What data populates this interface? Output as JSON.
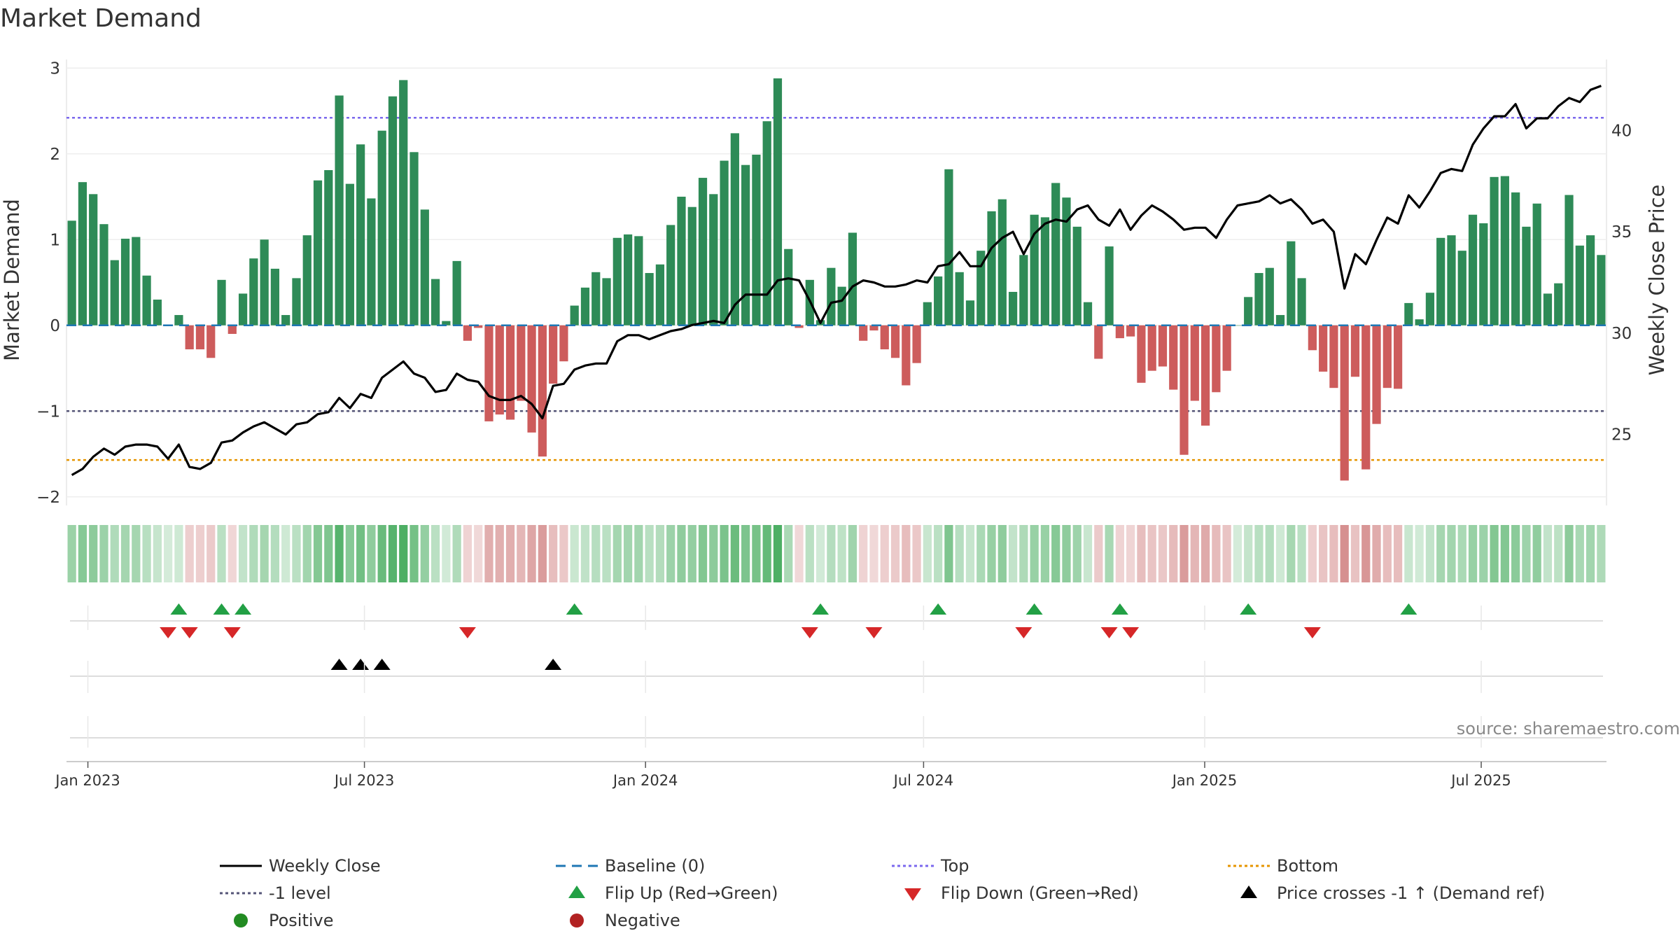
{
  "chart_data": {
    "type": "bar",
    "title": "Market Demand",
    "ylabel_left": "Market Demand",
    "ylabel_right": "Weekly Close Price",
    "source_note": "source: sharemaestro.com",
    "ylim_left": [
      -2.1,
      3.1
    ],
    "yticks_left": [
      3,
      2,
      1,
      0,
      -1,
      -2
    ],
    "ytick_labels_left": [
      "3",
      "2",
      "1",
      "0",
      "−1",
      "−2"
    ],
    "ylim_right": [
      21.5,
      43.5
    ],
    "yticks_right": [
      40,
      35,
      30,
      25
    ],
    "ytick_labels_right": [
      "40",
      "35",
      "30",
      "25"
    ],
    "reference_lines": {
      "top": 2.42,
      "minus_one": -1.0,
      "bottom": -1.57,
      "baseline": 0
    },
    "start_date": "2022-12-18",
    "x_ticks": [
      {
        "label": "Jan 2023",
        "date": "2023-01-01"
      },
      {
        "label": "Jul 2023",
        "date": "2023-07-01"
      },
      {
        "label": "Jan 2024",
        "date": "2024-01-01"
      },
      {
        "label": "Jul 2024",
        "date": "2024-07-01"
      },
      {
        "label": "Jan 2025",
        "date": "2025-01-01"
      },
      {
        "label": "Jul 2025",
        "date": "2025-07-01"
      }
    ],
    "demand": [
      1.22,
      1.67,
      1.53,
      1.18,
      0.76,
      1.01,
      1.03,
      0.58,
      0.3,
      0,
      0.12,
      -0.28,
      -0.28,
      -0.38,
      0.53,
      -0.1,
      0.37,
      0.78,
      1.0,
      0.66,
      0.12,
      0.55,
      1.05,
      1.69,
      1.81,
      2.68,
      1.65,
      2.11,
      1.48,
      2.27,
      2.67,
      2.86,
      2.02,
      1.35,
      0.54,
      0.05,
      0.75,
      -0.18,
      -0.03,
      -1.12,
      -1.04,
      -1.1,
      -0.88,
      -1.25,
      -1.53,
      -0.68,
      -0.42,
      0.23,
      0.44,
      0.62,
      0.55,
      1.02,
      1.06,
      1.04,
      0.61,
      0.71,
      1.17,
      1.5,
      1.38,
      1.72,
      1.53,
      1.92,
      2.24,
      1.87,
      1.99,
      2.38,
      2.88,
      0.89,
      -0.03,
      0.53,
      0.06,
      0.67,
      0.45,
      1.08,
      -0.18,
      -0.06,
      -0.28,
      -0.38,
      -0.7,
      -0.44,
      0.27,
      0.57,
      1.82,
      0.62,
      0.29,
      0.87,
      1.33,
      1.47,
      0.39,
      0.82,
      1.29,
      1.26,
      1.66,
      1.49,
      1.15,
      0.27,
      -0.39,
      0.92,
      -0.15,
      -0.13,
      -0.67,
      -0.53,
      -0.48,
      -0.75,
      -1.51,
      -0.88,
      -1.17,
      -0.78,
      -0.53,
      0.0,
      0.33,
      0.61,
      0.67,
      0.12,
      0.98,
      0.55,
      -0.29,
      -0.54,
      -0.73,
      -1.81,
      -0.6,
      -1.68,
      -1.15,
      -0.73,
      -0.74,
      0.26,
      0.07,
      0.38,
      1.02,
      1.05,
      0.87,
      1.29,
      1.19,
      1.73,
      1.74,
      1.55,
      1.15,
      1.42,
      0.37,
      0.49,
      1.52,
      0.93,
      1.05,
      0.82
    ],
    "close": [
      23.0,
      23.3,
      23.9,
      24.3,
      24.0,
      24.4,
      24.5,
      24.5,
      24.4,
      23.8,
      24.5,
      23.4,
      23.3,
      23.6,
      24.6,
      24.7,
      25.1,
      25.4,
      25.6,
      25.3,
      25.0,
      25.5,
      25.6,
      26.0,
      26.1,
      26.8,
      26.3,
      27.0,
      26.8,
      27.8,
      28.2,
      28.6,
      28.0,
      27.8,
      27.1,
      27.2,
      28.0,
      27.7,
      27.6,
      26.9,
      26.7,
      26.7,
      26.9,
      26.5,
      25.8,
      27.4,
      27.5,
      28.2,
      28.4,
      28.5,
      28.5,
      29.6,
      29.9,
      29.9,
      29.7,
      29.9,
      30.1,
      30.2,
      30.4,
      30.5,
      30.6,
      30.5,
      31.4,
      31.9,
      31.9,
      31.9,
      32.6,
      32.7,
      32.6,
      31.6,
      30.5,
      31.5,
      31.6,
      32.3,
      32.6,
      32.5,
      32.3,
      32.3,
      32.4,
      32.6,
      32.5,
      33.3,
      33.4,
      34.0,
      33.3,
      33.3,
      34.2,
      34.7,
      35.0,
      33.9,
      34.9,
      35.4,
      35.6,
      35.5,
      36.1,
      36.3,
      35.6,
      35.3,
      36.1,
      35.1,
      35.8,
      36.3,
      36.0,
      35.6,
      35.1,
      35.2,
      35.2,
      34.7,
      35.6,
      36.3,
      36.4,
      36.5,
      36.8,
      36.4,
      36.6,
      36.1,
      35.4,
      35.6,
      35.0,
      32.2,
      33.9,
      33.4,
      34.6,
      35.7,
      35.4,
      36.8,
      36.2,
      37.0,
      37.9,
      38.1,
      38.0,
      39.3,
      40.1,
      40.7,
      40.7,
      41.3,
      40.1,
      40.6,
      40.6,
      41.2,
      41.6,
      41.4,
      42.0,
      42.2
    ],
    "flip_up_weeks": [
      10,
      14,
      16,
      47,
      70,
      81,
      90,
      98,
      110,
      125
    ],
    "flip_down_weeks": [
      9,
      11,
      15,
      37,
      69,
      75,
      89,
      97,
      99,
      116
    ],
    "price_cross_weeks": [
      25,
      27,
      29,
      45
    ],
    "colors": {
      "positive_bar": "#2e8b57",
      "negative_bar": "#cd5c5c",
      "close_line": "#000000",
      "baseline": "#1f77b4",
      "top_line": "#7b68ee",
      "minus_one_line": "#555577",
      "bottom_line": "#e69500",
      "flip_up": "#22a045",
      "flip_down": "#d62728",
      "price_cross": "#000000",
      "positive_dot": "#228b22",
      "negative_dot": "#b22222",
      "heat_green": "#3aa653",
      "heat_red": "#c05555"
    }
  },
  "legend": {
    "items": [
      {
        "label": "Weekly Close",
        "icon": "solid-line",
        "color": "#000000"
      },
      {
        "label": "Baseline (0)",
        "icon": "dashed-line",
        "color": "#1f77b4"
      },
      {
        "label": "Top",
        "icon": "dotted-line",
        "color": "#7b68ee"
      },
      {
        "label": "Bottom",
        "icon": "dotted-line",
        "color": "#e69500"
      },
      {
        "label": "-1 level",
        "icon": "dotted-line",
        "color": "#555577"
      },
      {
        "label": "Flip Up (Red→Green)",
        "icon": "triangle-up",
        "color": "#22a045"
      },
      {
        "label": "Flip Down (Green→Red)",
        "icon": "triangle-down",
        "color": "#d62728"
      },
      {
        "label": "Price crosses -1 ↑ (Demand ref)",
        "icon": "triangle-up",
        "color": "#000000"
      },
      {
        "label": "Positive",
        "icon": "circle",
        "color": "#228b22"
      },
      {
        "label": "Negative",
        "icon": "circle",
        "color": "#b22222"
      }
    ]
  }
}
